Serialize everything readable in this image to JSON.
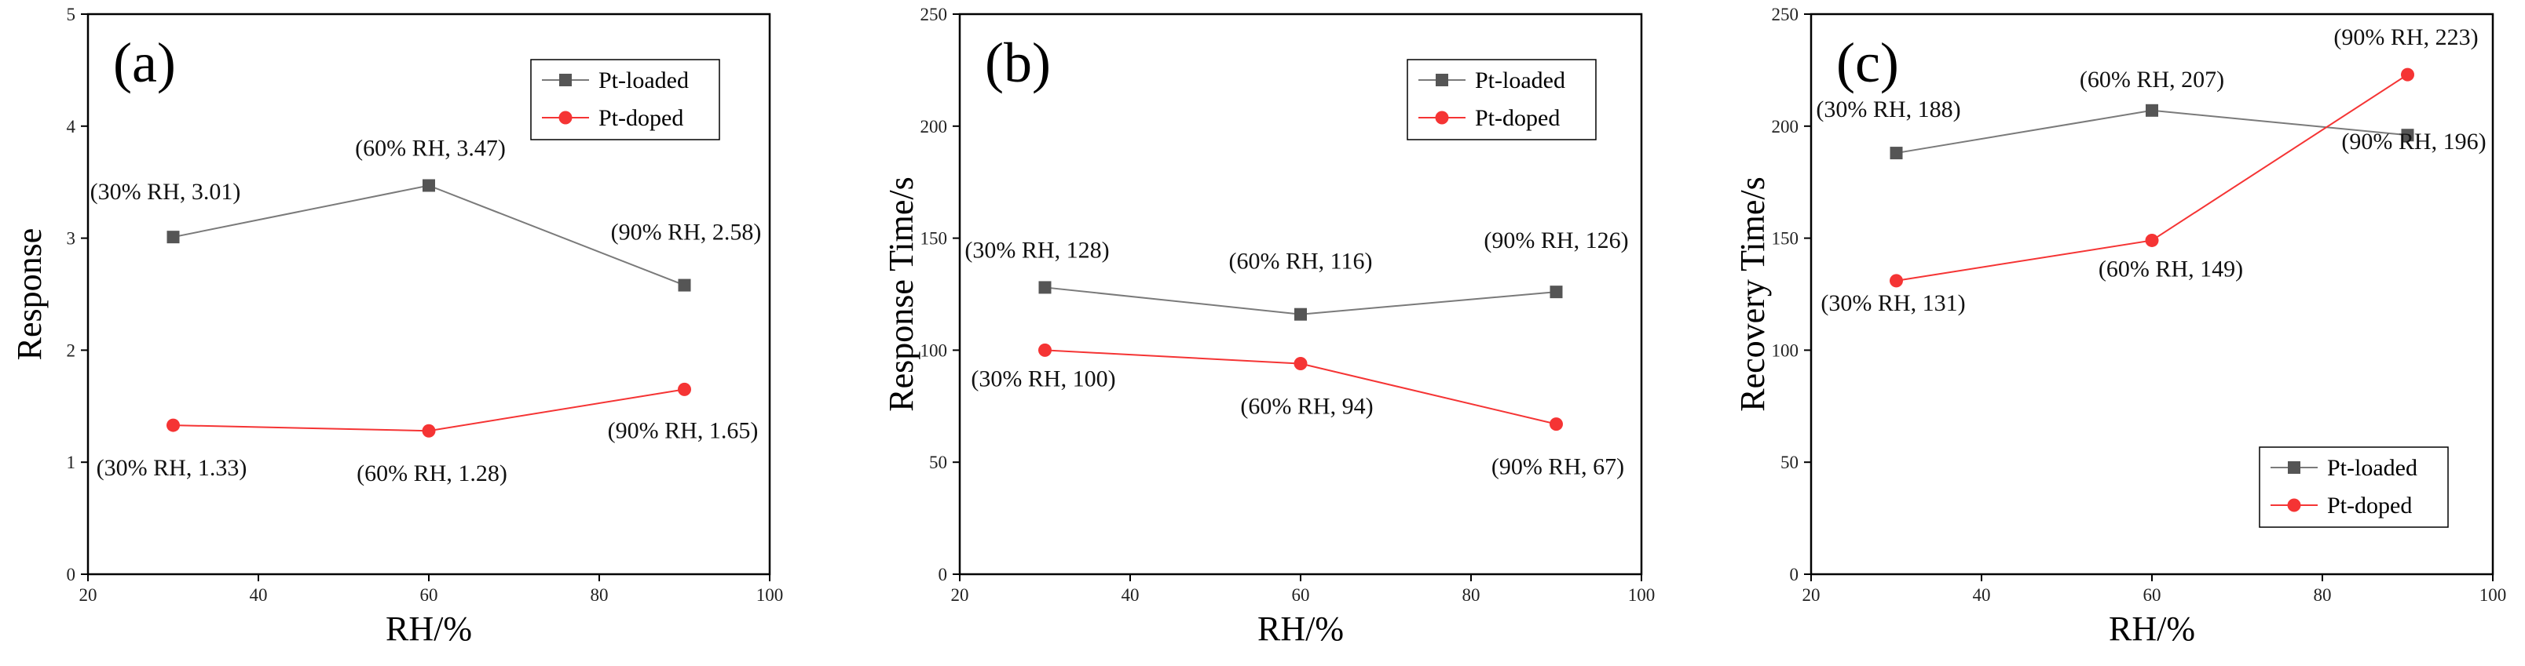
{
  "colors": {
    "pt_loaded": "#555555",
    "pt_doped": "#f53434",
    "line_loaded": "#7a7a7a",
    "line_doped": "#f53434",
    "axis": "#000000"
  },
  "chart_data": [
    {
      "type": "line",
      "panel_label": "(a)",
      "xlabel": "RH/%",
      "ylabel": "Response",
      "xlim": [
        20,
        100
      ],
      "ylim": [
        0,
        5
      ],
      "xticks": [
        20,
        40,
        60,
        80,
        100
      ],
      "yticks": [
        0,
        1,
        2,
        3,
        4,
        5
      ],
      "legend_position": "top-right",
      "series": [
        {
          "name": "Pt-loaded",
          "x": [
            30,
            60,
            90
          ],
          "y": [
            3.01,
            3.47,
            2.58
          ]
        },
        {
          "name": "Pt-doped",
          "x": [
            30,
            60,
            90
          ],
          "y": [
            1.33,
            1.28,
            1.65
          ]
        }
      ],
      "annotations": [
        {
          "text": "(30% RH, 3.01)",
          "x": 30,
          "y": 3.01,
          "placement": "above-left"
        },
        {
          "text": "(60% RH, 3.47)",
          "x": 60,
          "y": 3.47,
          "placement": "above"
        },
        {
          "text": "(90% RH, 2.58)",
          "x": 90,
          "y": 2.58,
          "placement": "above"
        },
        {
          "text": "(30% RH, 1.33)",
          "x": 30,
          "y": 1.33,
          "placement": "below"
        },
        {
          "text": "(60% RH, 1.28)",
          "x": 60,
          "y": 1.28,
          "placement": "below"
        },
        {
          "text": "(90% RH, 1.65)",
          "x": 90,
          "y": 1.65,
          "placement": "below"
        }
      ]
    },
    {
      "type": "line",
      "panel_label": "(b)",
      "xlabel": "RH/%",
      "ylabel": "Response Time/s",
      "xlim": [
        20,
        100
      ],
      "ylim": [
        0,
        250
      ],
      "xticks": [
        20,
        40,
        60,
        80,
        100
      ],
      "yticks": [
        0,
        50,
        100,
        150,
        200,
        250
      ],
      "legend_position": "top-right",
      "series": [
        {
          "name": "Pt-loaded",
          "x": [
            30,
            60,
            90
          ],
          "y": [
            128,
            116,
            126
          ]
        },
        {
          "name": "Pt-doped",
          "x": [
            30,
            60,
            90
          ],
          "y": [
            100,
            94,
            67
          ]
        }
      ],
      "annotations": [
        {
          "text": "(30% RH, 128)",
          "x": 30,
          "y": 128,
          "placement": "above"
        },
        {
          "text": "(60% RH, 116)",
          "x": 60,
          "y": 116,
          "placement": "above"
        },
        {
          "text": "(90% RH, 126)",
          "x": 90,
          "y": 126,
          "placement": "above"
        },
        {
          "text": "(30% RH, 100)",
          "x": 30,
          "y": 100,
          "placement": "below"
        },
        {
          "text": "(60% RH, 94)",
          "x": 60,
          "y": 94,
          "placement": "below"
        },
        {
          "text": "(90% RH, 67)",
          "x": 90,
          "y": 67,
          "placement": "below"
        }
      ]
    },
    {
      "type": "line",
      "panel_label": "(c)",
      "xlabel": "RH/%",
      "ylabel": "Recovery Time/s",
      "xlim": [
        20,
        100
      ],
      "ylim": [
        0,
        250
      ],
      "xticks": [
        20,
        40,
        60,
        80,
        100
      ],
      "yticks": [
        0,
        50,
        100,
        150,
        200,
        250
      ],
      "legend_position": "bottom-right",
      "series": [
        {
          "name": "Pt-loaded",
          "x": [
            30,
            60,
            90
          ],
          "y": [
            188,
            207,
            196
          ]
        },
        {
          "name": "Pt-doped",
          "x": [
            30,
            60,
            90
          ],
          "y": [
            131,
            149,
            223
          ]
        }
      ],
      "annotations": [
        {
          "text": "(30% RH, 188)",
          "x": 30,
          "y": 188,
          "placement": "above"
        },
        {
          "text": "(60% RH, 207)",
          "x": 60,
          "y": 207,
          "placement": "above"
        },
        {
          "text": "(90% RH, 196)",
          "x": 90,
          "y": 196,
          "placement": "below"
        },
        {
          "text": "(30% RH, 131)",
          "x": 30,
          "y": 131,
          "placement": "below"
        },
        {
          "text": "(60% RH, 149)",
          "x": 60,
          "y": 149,
          "placement": "below"
        },
        {
          "text": "(90% RH, 223)",
          "x": 90,
          "y": 223,
          "placement": "above"
        }
      ]
    }
  ]
}
